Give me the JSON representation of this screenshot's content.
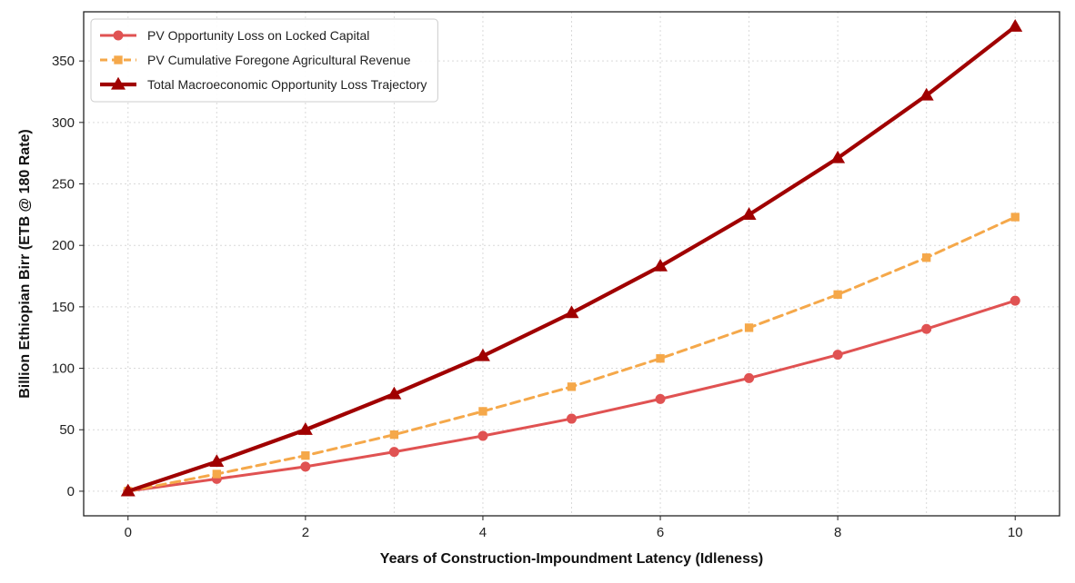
{
  "chart_data": {
    "type": "line",
    "title": "",
    "xlabel": "Years of Construction-Impoundment Latency (Idleness)",
    "ylabel": "Billion Ethiopian Birr (ETB @ 180 Rate)",
    "xlim": [
      -0.5,
      10.5
    ],
    "ylim": [
      -20,
      390
    ],
    "xticks": [
      0,
      2,
      4,
      6,
      8,
      10
    ],
    "yticks": [
      0,
      50,
      100,
      150,
      200,
      250,
      300,
      350
    ],
    "grid": true,
    "legend_position": "top-left",
    "x": [
      0,
      1,
      2,
      3,
      4,
      5,
      6,
      7,
      8,
      9,
      10
    ],
    "series": [
      {
        "name": "PV Opportunity Loss on Locked Capital",
        "values": [
          0,
          10,
          20,
          32,
          45,
          59,
          75,
          92,
          111,
          132,
          155
        ],
        "color": "#e05252",
        "marker": "circle",
        "linestyle": "solid"
      },
      {
        "name": "PV Cumulative Foregone Agricultural Revenue",
        "values": [
          0,
          14,
          29,
          46,
          65,
          85,
          108,
          133,
          160,
          190,
          223
        ],
        "color": "#f5a84a",
        "marker": "square",
        "linestyle": "dashed"
      },
      {
        "name": "Total Macroeconomic Opportunity Loss Trajectory",
        "values": [
          0,
          24,
          50,
          79,
          110,
          145,
          183,
          225,
          271,
          322,
          378
        ],
        "color": "#a00000",
        "marker": "triangle",
        "linestyle": "solid"
      }
    ]
  }
}
